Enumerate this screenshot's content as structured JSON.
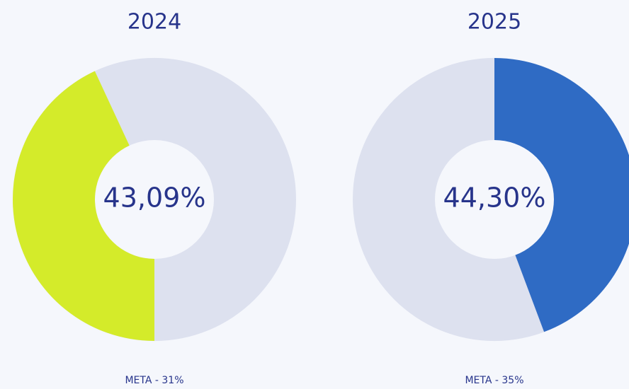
{
  "chart_data": [
    {
      "type": "donut",
      "title": "2024",
      "values": [
        43.09
      ],
      "value_labels": [
        "43,09%"
      ],
      "color": "#d4eb2a",
      "start": "bottom",
      "annotation": "META - 31%"
    },
    {
      "type": "donut",
      "title": "2025",
      "values": [
        44.3
      ],
      "value_labels": [
        "44,30%"
      ],
      "color": "#2f6bc4",
      "start": "top",
      "annotation": "META - 35%"
    }
  ]
}
